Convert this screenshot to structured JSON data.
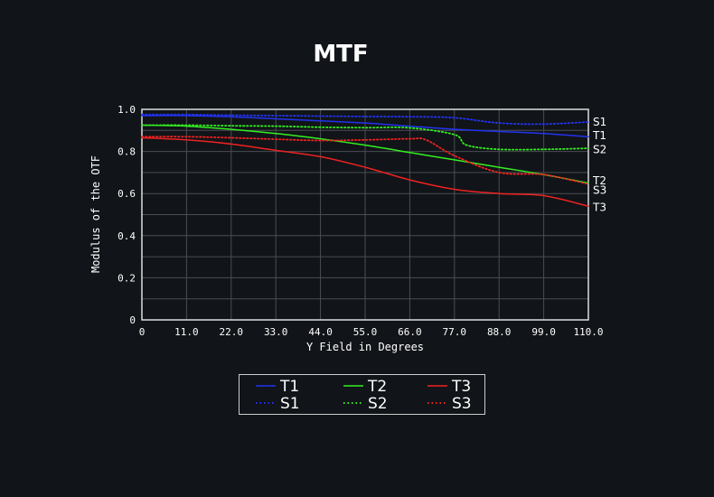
{
  "chart_data": {
    "type": "line",
    "title": "MTF",
    "xlabel": "Y Field in Degrees",
    "ylabel": "Modulus of the OTF",
    "xlim": [
      0,
      110
    ],
    "ylim": [
      0,
      1.0
    ],
    "xticks": [
      "0",
      "11.0",
      "22.0",
      "33.0",
      "44.0",
      "55.0",
      "66.0",
      "77.0",
      "88.0",
      "99.0",
      "110.0"
    ],
    "yticks": [
      "0",
      "0.2",
      "0.4",
      "0.6",
      "0.8",
      "1.0"
    ],
    "grid": true,
    "legend_position": "bottom",
    "series": [
      {
        "name": "T1",
        "color": "#2233ee",
        "dash": "solid",
        "x": [
          0,
          11,
          22,
          33,
          44,
          55,
          66,
          77,
          88,
          99,
          110
        ],
        "y": [
          0.97,
          0.97,
          0.965,
          0.955,
          0.945,
          0.935,
          0.92,
          0.905,
          0.895,
          0.885,
          0.87
        ]
      },
      {
        "name": "S1",
        "color": "#2233ee",
        "dash": "dotted",
        "x": [
          0,
          11,
          22,
          33,
          44,
          55,
          66,
          77,
          88,
          99,
          110
        ],
        "y": [
          0.975,
          0.975,
          0.972,
          0.97,
          0.968,
          0.966,
          0.965,
          0.96,
          0.935,
          0.93,
          0.94
        ]
      },
      {
        "name": "T2",
        "color": "#33ee22",
        "dash": "solid",
        "x": [
          0,
          11,
          22,
          33,
          44,
          55,
          66,
          77,
          88,
          99,
          110
        ],
        "y": [
          0.925,
          0.92,
          0.905,
          0.885,
          0.86,
          0.83,
          0.795,
          0.76,
          0.725,
          0.69,
          0.65
        ]
      },
      {
        "name": "S2",
        "color": "#33ee22",
        "dash": "dotted",
        "x": [
          0,
          11,
          22,
          33,
          44,
          55,
          66,
          77,
          80,
          88,
          99,
          110
        ],
        "y": [
          0.925,
          0.925,
          0.922,
          0.92,
          0.915,
          0.913,
          0.912,
          0.88,
          0.83,
          0.81,
          0.81,
          0.815
        ]
      },
      {
        "name": "T3",
        "color": "#ee2222",
        "dash": "solid",
        "x": [
          0,
          11,
          22,
          33,
          44,
          55,
          66,
          77,
          88,
          99,
          110
        ],
        "y": [
          0.865,
          0.855,
          0.835,
          0.805,
          0.775,
          0.725,
          0.665,
          0.62,
          0.6,
          0.59,
          0.54
        ]
      },
      {
        "name": "S3",
        "color": "#ee2222",
        "dash": "dotted",
        "x": [
          0,
          11,
          22,
          33,
          44,
          55,
          66,
          70,
          77,
          88,
          99,
          110
        ],
        "y": [
          0.87,
          0.87,
          0.865,
          0.858,
          0.852,
          0.855,
          0.86,
          0.855,
          0.78,
          0.7,
          0.69,
          0.645
        ]
      }
    ],
    "end_labels": [
      {
        "name": "S1",
        "y": 0.94
      },
      {
        "name": "T1",
        "y": 0.875
      },
      {
        "name": "S2",
        "y": 0.81
      },
      {
        "name": "T2",
        "y": 0.66
      },
      {
        "name": "S3",
        "y": 0.615
      },
      {
        "name": "T3",
        "y": 0.535
      }
    ]
  }
}
